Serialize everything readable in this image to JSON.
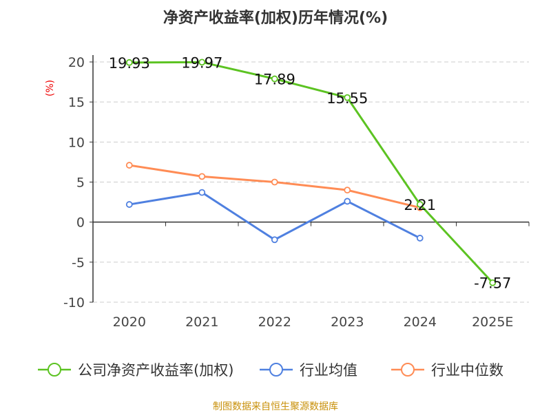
{
  "chart_data": {
    "type": "line",
    "title": "净资产收益率(加权)历年情况(%)",
    "ylabel": "(%)",
    "categories": [
      "2020",
      "2021",
      "2022",
      "2023",
      "2024",
      "2025E"
    ],
    "ylim": [
      -10,
      20
    ],
    "yticks": [
      20,
      15,
      10,
      5,
      0,
      -5,
      -10
    ],
    "grid": true,
    "legend_position": "bottom",
    "series": [
      {
        "name": "公司净资产收益率(加权)",
        "color": "#5cc322",
        "values": [
          19.93,
          19.97,
          17.89,
          15.55,
          2.21,
          -7.57
        ],
        "labels": [
          "19.93",
          "19.97",
          "17.89",
          "15.55",
          "2.21",
          "-7.57"
        ]
      },
      {
        "name": "行业均值",
        "color": "#4f80e0",
        "values": [
          2.2,
          3.7,
          -2.2,
          2.6,
          -2.0,
          null
        ]
      },
      {
        "name": "行业中位数",
        "color": "#ff8c55",
        "values": [
          7.1,
          5.7,
          5.0,
          4.0,
          1.8,
          null
        ]
      }
    ],
    "source": "制图数据来自恒生聚源数据库"
  }
}
